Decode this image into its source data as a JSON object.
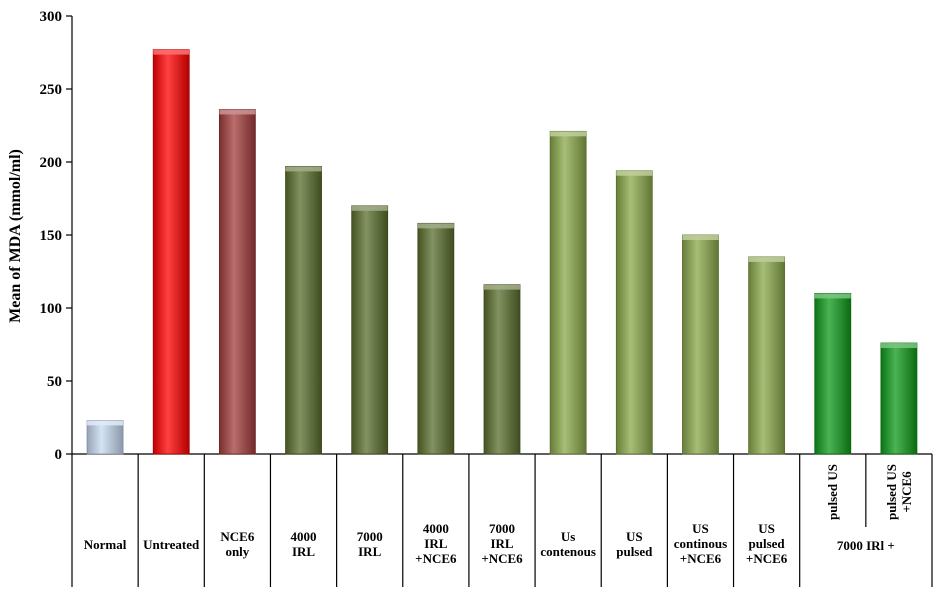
{
  "chart_data": {
    "type": "bar",
    "ylabel": "Mean of MDA (mmol/ml)",
    "ylim": [
      0,
      300
    ],
    "yticks": [
      0,
      50,
      100,
      150,
      200,
      250,
      300
    ],
    "categories": [
      [
        "Normal"
      ],
      [
        "Untreated"
      ],
      [
        "NCE6",
        "only"
      ],
      [
        "4000",
        "IRL"
      ],
      [
        "7000",
        "IRL"
      ],
      [
        "4000",
        "IRL",
        "+NCE6"
      ],
      [
        "7000",
        "IRL",
        "+NCE6"
      ],
      [
        "Us",
        "contenous"
      ],
      [
        "US",
        "pulsed"
      ],
      [
        "US",
        "continous",
        "+NCE6"
      ],
      [
        "US",
        "pulsed",
        "+NCE6"
      ],
      [
        "pulsed US"
      ],
      [
        "pulsed US",
        "+NCE6"
      ]
    ],
    "values": [
      23,
      277,
      236,
      197,
      170,
      158,
      116,
      221,
      194,
      150,
      135,
      110,
      76
    ],
    "colors": [
      "#c6d9f1",
      "#ff0000",
      "#a33c3c",
      "#5a6e2c",
      "#5a6e2c",
      "#5a6e2c",
      "#5a6e2c",
      "#8aa84a",
      "#8aa84a",
      "#8aa84a",
      "#8aa84a",
      "#0f9a1a",
      "#0f9a1a"
    ],
    "group_label": "7000 IRl +",
    "grid": false,
    "legend": "none"
  }
}
